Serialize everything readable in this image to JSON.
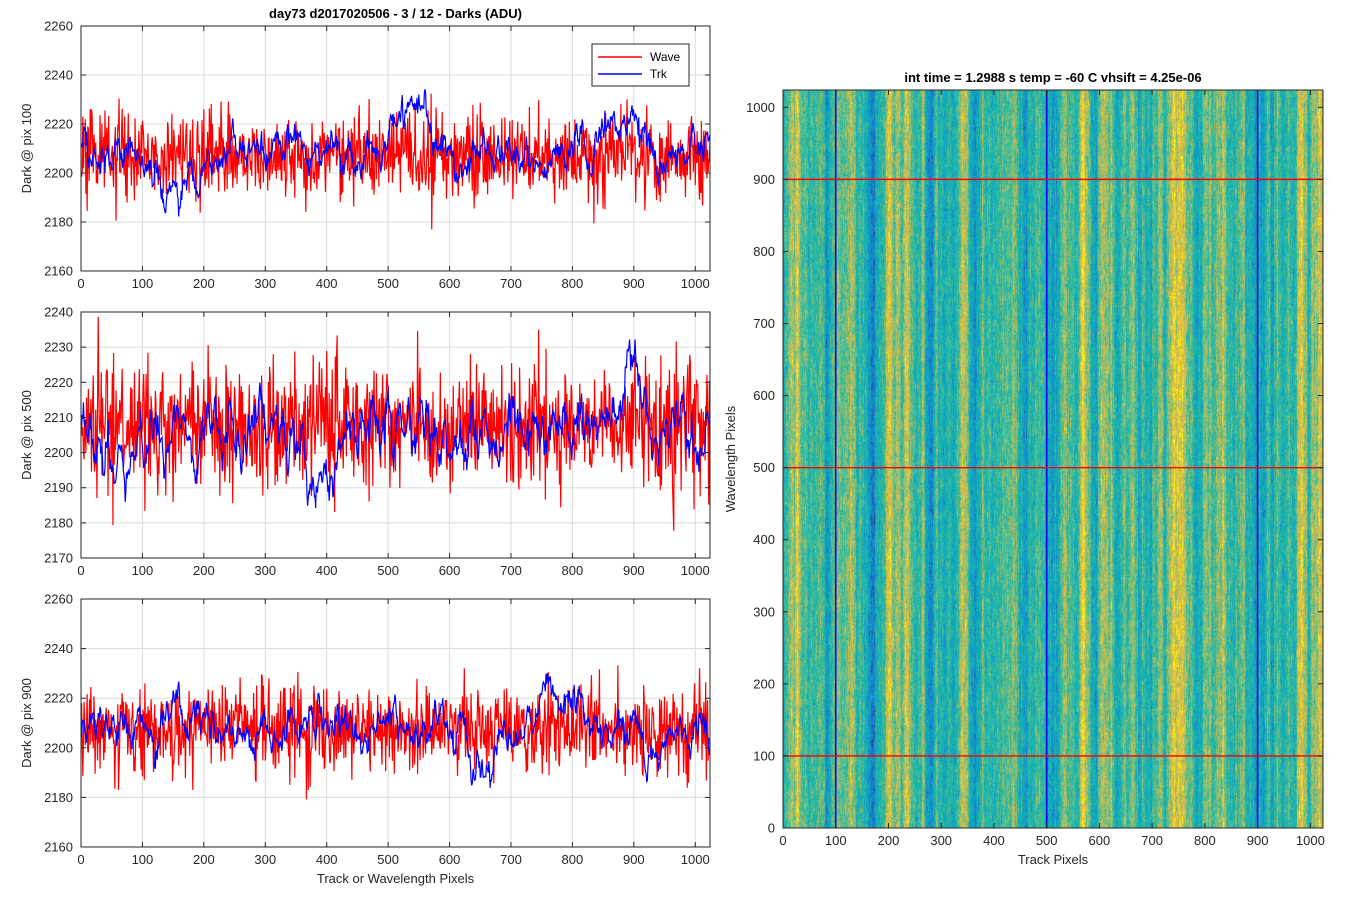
{
  "chart_data": [
    {
      "type": "line",
      "title": "day73 d2017020506 - 3 / 12 - Darks (ADU)",
      "xlabel": "",
      "ylabel": "Dark @ pix 100",
      "xlim": [
        0,
        1024
      ],
      "ylim": [
        2160,
        2260
      ],
      "xticks": [
        0,
        100,
        200,
        300,
        400,
        500,
        600,
        700,
        800,
        900,
        1000
      ],
      "yticks": [
        2160,
        2180,
        2200,
        2220,
        2240,
        2260
      ],
      "grid": true,
      "legend": "top-right",
      "series": [
        {
          "name": "Wave",
          "color": "#ff0000",
          "mean": 2207,
          "noise_sd": 9,
          "features": []
        },
        {
          "name": "Trk",
          "color": "#0000ff",
          "mean": 2208,
          "noise_sd": 4.5,
          "features": [
            {
              "x": 145,
              "width": 30,
              "delta": -18
            },
            {
              "x": 535,
              "width": 40,
              "delta": 25
            },
            {
              "x": 880,
              "width": 35,
              "delta": 18
            }
          ]
        }
      ]
    },
    {
      "type": "line",
      "title": "",
      "xlabel": "",
      "ylabel": "Dark @ pix 500",
      "xlim": [
        0,
        1024
      ],
      "ylim": [
        2170,
        2240
      ],
      "xticks": [
        0,
        100,
        200,
        300,
        400,
        500,
        600,
        700,
        800,
        900,
        1000
      ],
      "yticks": [
        2170,
        2180,
        2190,
        2200,
        2210,
        2220,
        2230,
        2240
      ],
      "grid": true,
      "series": [
        {
          "name": "Wave",
          "color": "#ff0000",
          "mean": 2207,
          "noise_sd": 9,
          "features": []
        },
        {
          "name": "Trk",
          "color": "#0000ff",
          "mean": 2207,
          "noise_sd": 4.5,
          "features": [
            {
              "x": 60,
              "width": 25,
              "delta": -12
            },
            {
              "x": 380,
              "width": 40,
              "delta": -12
            },
            {
              "x": 890,
              "width": 30,
              "delta": 15
            }
          ]
        }
      ]
    },
    {
      "type": "line",
      "title": "",
      "xlabel": "Track or Wavelength Pixels",
      "ylabel": "Dark @ pix 900",
      "xlim": [
        0,
        1024
      ],
      "ylim": [
        2160,
        2260
      ],
      "xticks": [
        0,
        100,
        200,
        300,
        400,
        500,
        600,
        700,
        800,
        900,
        1000
      ],
      "yticks": [
        2160,
        2180,
        2200,
        2220,
        2240,
        2260
      ],
      "grid": true,
      "series": [
        {
          "name": "Wave",
          "color": "#ff0000",
          "mean": 2207,
          "noise_sd": 9,
          "features": []
        },
        {
          "name": "Trk",
          "color": "#0000ff",
          "mean": 2208,
          "noise_sd": 4.5,
          "features": [
            {
              "x": 160,
              "width": 35,
              "delta": 10
            },
            {
              "x": 660,
              "width": 30,
              "delta": -18
            },
            {
              "x": 760,
              "width": 30,
              "delta": 18
            },
            {
              "x": 940,
              "width": 25,
              "delta": -15
            }
          ]
        }
      ]
    },
    {
      "type": "heatmap",
      "title": "int time = 1.2988 s    temp = -60 C    vhsift = 4.25e-06",
      "xlabel": "Track Pixels",
      "ylabel": "Wavelength Pixels",
      "xlim": [
        0,
        1024
      ],
      "ylim": [
        0,
        1024
      ],
      "xticks": [
        0,
        100,
        200,
        300,
        400,
        500,
        600,
        700,
        800,
        900,
        1000
      ],
      "yticks": [
        0,
        100,
        200,
        300,
        400,
        500,
        600,
        700,
        800,
        900,
        1000
      ],
      "colormap": "parula",
      "vertical_lines": {
        "x": [
          100,
          500,
          900
        ],
        "color": "#0000ff"
      },
      "horizontal_lines": {
        "y": [
          100,
          500,
          900
        ],
        "color": "#ff0000"
      }
    }
  ]
}
